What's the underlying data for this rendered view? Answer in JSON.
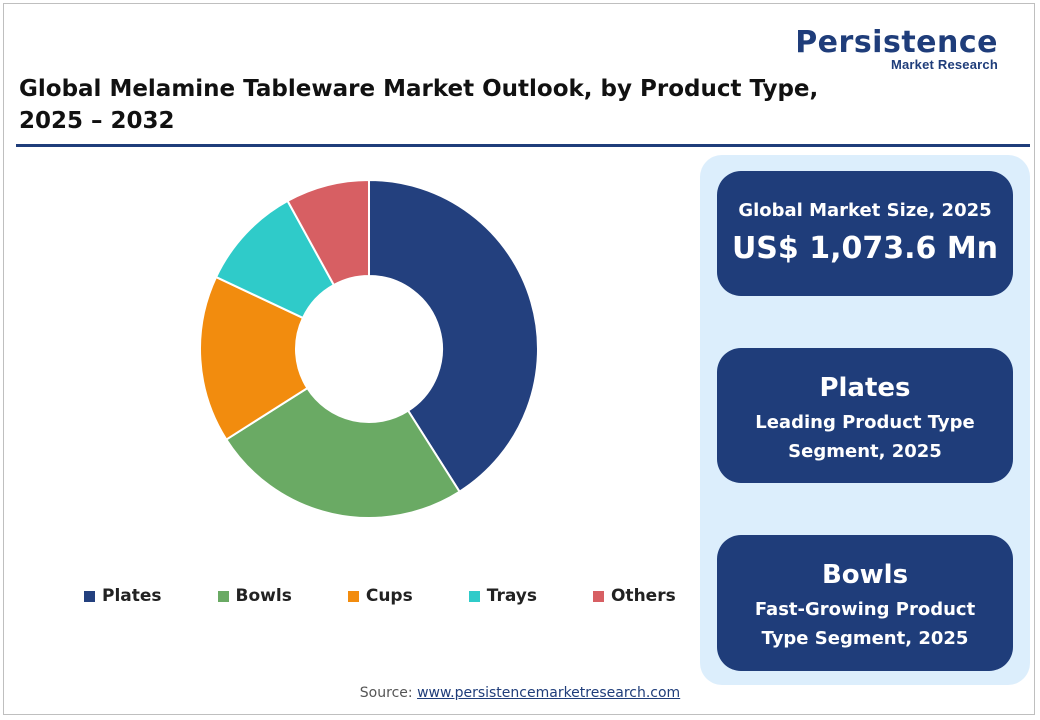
{
  "logo": {
    "main": "Persistence",
    "sub": "Market Research"
  },
  "title": "Global Melamine Tableware Market Outlook, by Product Type, 2025 – 2032",
  "colors": {
    "accent": "#1f3d7a",
    "panel": "#dceefc"
  },
  "chart_data": {
    "type": "pie",
    "donut": true,
    "title": "",
    "categories": [
      "Plates",
      "Bowls",
      "Cups",
      "Trays",
      "Others"
    ],
    "values": [
      41,
      25,
      16,
      10,
      8
    ],
    "colors": [
      "#23407e",
      "#6aaa64",
      "#f28c0e",
      "#2fcbc9",
      "#d75f63"
    ],
    "legend": "bottom"
  },
  "cards": {
    "market_size": {
      "label": "Global Market Size, 2025",
      "value": "US$ 1,073.6 Mn"
    },
    "leading": {
      "name": "Plates",
      "desc1": "Leading Product Type",
      "desc2": "Segment, 2025"
    },
    "fast": {
      "name": "Bowls",
      "desc1": "Fast-Growing Product",
      "desc2": "Type Segment, 2025"
    }
  },
  "source": {
    "label": "Source:",
    "link": "www.persistencemarketresearch.com"
  }
}
